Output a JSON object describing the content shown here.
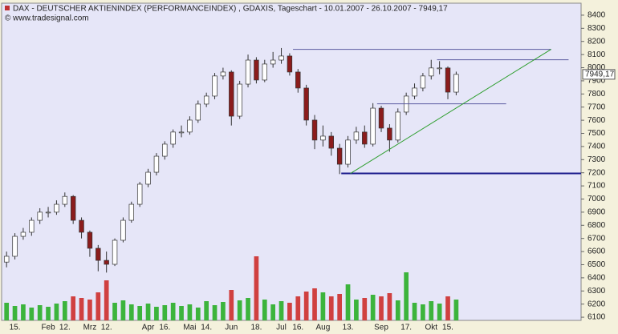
{
  "chart_data": {
    "type": "candlestick",
    "title": "DAX  - DEUTSCHER AKTIENINDEX (PERFORMANCEINDEX) , GDAXIS, Tageschart - 10.01.2007 - 26.10.2007 - 7949,17",
    "subtitle": "© www.tradesignal.com",
    "categories": [
      null,
      "15.",
      null,
      null,
      null,
      "Feb",
      null,
      "12.",
      null,
      null,
      "Mrz",
      null,
      "12.",
      null,
      null,
      null,
      null,
      "Apr",
      null,
      "16.",
      null,
      null,
      "Mai",
      null,
      "14.",
      null,
      null,
      "Jun",
      null,
      null,
      "18.",
      null,
      null,
      "Jul",
      null,
      "16.",
      null,
      null,
      "Aug",
      null,
      null,
      "13.",
      null,
      null,
      null,
      "Sep",
      null,
      null,
      "17.",
      null,
      null,
      "Okt",
      null,
      "15.",
      null
    ],
    "open": [
      6520,
      6564,
      6716,
      6747,
      6838,
      6900,
      6900,
      6960,
      7020,
      6838,
      6747,
      6625,
      6533,
      6503,
      6686,
      6838,
      6960,
      7113,
      7204,
      7326,
      7418,
      7510,
      7510,
      7601,
      7723,
      7784,
      7937,
      7967,
      7631,
      7875,
      8058,
      7906,
      8028,
      8058,
      8089,
      7967,
      7845,
      7601,
      7449,
      7479,
      7387,
      7265,
      7449,
      7510,
      7418,
      7692,
      7540,
      7449,
      7662,
      7784,
      7845,
      7937,
      7998,
      7998,
      7814
    ],
    "high": [
      6600,
      6740,
      6780,
      6860,
      6930,
      6940,
      6990,
      7050,
      7030,
      6860,
      6760,
      6650,
      6600,
      6700,
      6860,
      6980,
      7130,
      7230,
      7350,
      7440,
      7530,
      7560,
      7630,
      7750,
      7810,
      7960,
      8000,
      7980,
      7900,
      8100,
      8080,
      8060,
      8120,
      8150,
      8110,
      7990,
      7870,
      7640,
      7560,
      7510,
      7420,
      7480,
      7550,
      7560,
      7730,
      7710,
      7570,
      7690,
      7810,
      7880,
      7960,
      8060,
      8050,
      8010,
      7970
    ],
    "low": [
      6480,
      6540,
      6690,
      6720,
      6810,
      6860,
      6880,
      6940,
      6810,
      6700,
      6560,
      6450,
      6440,
      6490,
      6670,
      6820,
      6940,
      7090,
      7180,
      7300,
      7390,
      7470,
      7490,
      7580,
      7700,
      7760,
      7910,
      7560,
      7610,
      7850,
      7880,
      7890,
      8000,
      8030,
      7940,
      7810,
      7560,
      7380,
      7400,
      7330,
      7190,
      7240,
      7420,
      7390,
      7400,
      7510,
      7360,
      7430,
      7640,
      7760,
      7820,
      7910,
      7950,
      7760,
      7790
    ],
    "close": [
      6564,
      6716,
      6747,
      6838,
      6900,
      6900,
      6960,
      7020,
      6838,
      6747,
      6625,
      6533,
      6503,
      6686,
      6838,
      6960,
      7113,
      7204,
      7326,
      7418,
      7510,
      7510,
      7601,
      7723,
      7784,
      7937,
      7967,
      7631,
      7875,
      8058,
      7906,
      8028,
      8058,
      8089,
      7967,
      7845,
      7601,
      7449,
      7479,
      7387,
      7265,
      7449,
      7510,
      7418,
      7692,
      7540,
      7449,
      7662,
      7784,
      7845,
      7937,
      7998,
      7998,
      7814,
      7949.17
    ],
    "volume": [
      22,
      18,
      20,
      16,
      19,
      17,
      21,
      24,
      30,
      28,
      26,
      35,
      50,
      22,
      25,
      20,
      18,
      21,
      17,
      19,
      22,
      18,
      20,
      16,
      24,
      19,
      23,
      38,
      25,
      28,
      80,
      26,
      20,
      24,
      22,
      30,
      36,
      40,
      35,
      30,
      33,
      45,
      26,
      28,
      32,
      30,
      34,
      25,
      60,
      22,
      20,
      24,
      21,
      30,
      26
    ],
    "volume_ylim": [
      0,
      100
    ],
    "up_color": "#ffffff",
    "down_color": "#8b1c1c",
    "wick_color": "#333333",
    "volume_up_color": "#3cb43c",
    "volume_down_color": "#d04040",
    "xlim": [
      -0.5,
      69
    ],
    "ylim": [
      6076,
      8485
    ],
    "yticks": [
      6100,
      6200,
      6300,
      6400,
      6500,
      6600,
      6700,
      6800,
      6900,
      7000,
      7100,
      7200,
      7300,
      7400,
      7500,
      7600,
      7700,
      7800,
      7900,
      8000,
      8100,
      8200,
      8300,
      8400
    ],
    "last_value": 7949.17,
    "last_label": "7949,17",
    "lines": [
      {
        "x": [
          34.4,
          65.4
        ],
        "y": [
          8140,
          8140
        ],
        "color": "#5a5aa0",
        "width": 1
      },
      {
        "x": [
          51.7,
          67.5
        ],
        "y": [
          8060,
          8060
        ],
        "color": "#5a5aa0",
        "width": 1
      },
      {
        "x": [
          44.5,
          60
        ],
        "y": [
          7725,
          7725
        ],
        "color": "#5a5aa0",
        "width": 1
      },
      {
        "x": [
          40.2,
          69
        ],
        "y": [
          7195,
          7195
        ],
        "color": "#1a1a8c",
        "width": 2
      },
      {
        "x": [
          41.3,
          65.4
        ],
        "y": [
          7195,
          8140
        ],
        "color": "#2e9e2e",
        "width": 1
      }
    ]
  }
}
